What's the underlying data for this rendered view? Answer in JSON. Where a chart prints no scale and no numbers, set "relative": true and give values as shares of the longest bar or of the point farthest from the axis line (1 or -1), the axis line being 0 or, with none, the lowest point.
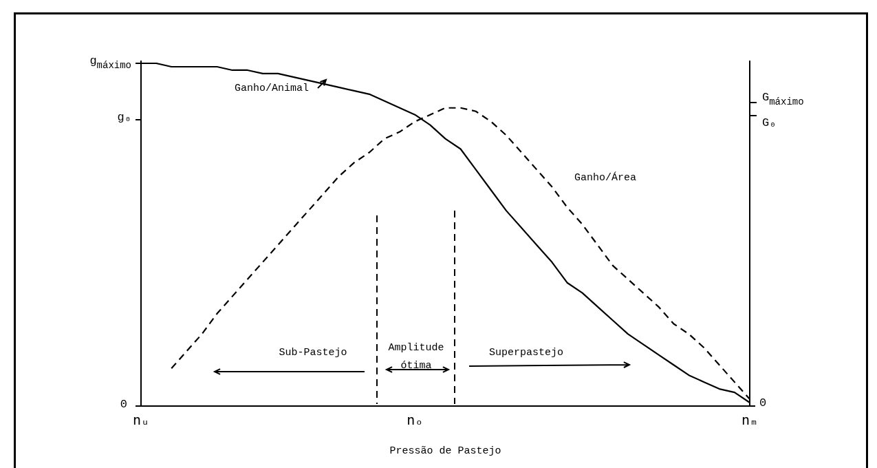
{
  "chart_data": {
    "type": "line",
    "relative": true,
    "xlabel": "Pressão de Pastejo",
    "categories": [
      "nᵤ",
      null,
      null,
      null,
      null,
      null,
      null,
      null,
      null,
      null,
      null,
      null,
      null,
      null,
      null,
      null,
      null,
      null,
      "nₒ",
      null,
      null,
      null,
      null,
      null,
      null,
      null,
      null,
      null,
      null,
      null,
      null,
      null,
      null,
      null,
      null,
      null,
      null,
      null,
      null,
      null,
      "nₘ"
    ],
    "series": [
      {
        "name": "Ganho/Animal",
        "color": "#000000",
        "line_style": "solid",
        "values": [
          1.0,
          1.0,
          0.99,
          0.99,
          0.99,
          0.99,
          0.98,
          0.98,
          0.97,
          0.97,
          0.96,
          0.95,
          0.94,
          0.93,
          0.92,
          0.91,
          0.89,
          0.87,
          0.85,
          0.82,
          0.78,
          0.75,
          0.69,
          0.63,
          0.57,
          0.52,
          0.47,
          0.42,
          0.36,
          0.33,
          0.29,
          0.25,
          0.21,
          0.18,
          0.15,
          0.12,
          0.09,
          0.07,
          0.05,
          0.04,
          0.01
        ]
      },
      {
        "name": "Ganho/Área",
        "color": "#000000",
        "line_style": "dashed",
        "values": [
          null,
          null,
          0.11,
          0.16,
          0.21,
          0.27,
          0.32,
          0.37,
          0.42,
          0.47,
          0.52,
          0.57,
          0.62,
          0.67,
          0.71,
          0.74,
          0.78,
          0.8,
          0.83,
          0.85,
          0.87,
          0.87,
          0.86,
          0.83,
          0.79,
          0.74,
          0.69,
          0.64,
          0.58,
          0.53,
          0.47,
          0.41,
          0.37,
          0.33,
          0.29,
          0.24,
          0.21,
          0.17,
          0.12,
          0.07,
          0.02
        ]
      }
    ],
    "annotations": [
      "g$_{máximo}$",
      "g₀",
      "0",
      "G$_{máximo}$",
      "G₀",
      "0",
      "Sub-Pastejo",
      "Amplitude ótima",
      "Superpastejo"
    ]
  }
}
